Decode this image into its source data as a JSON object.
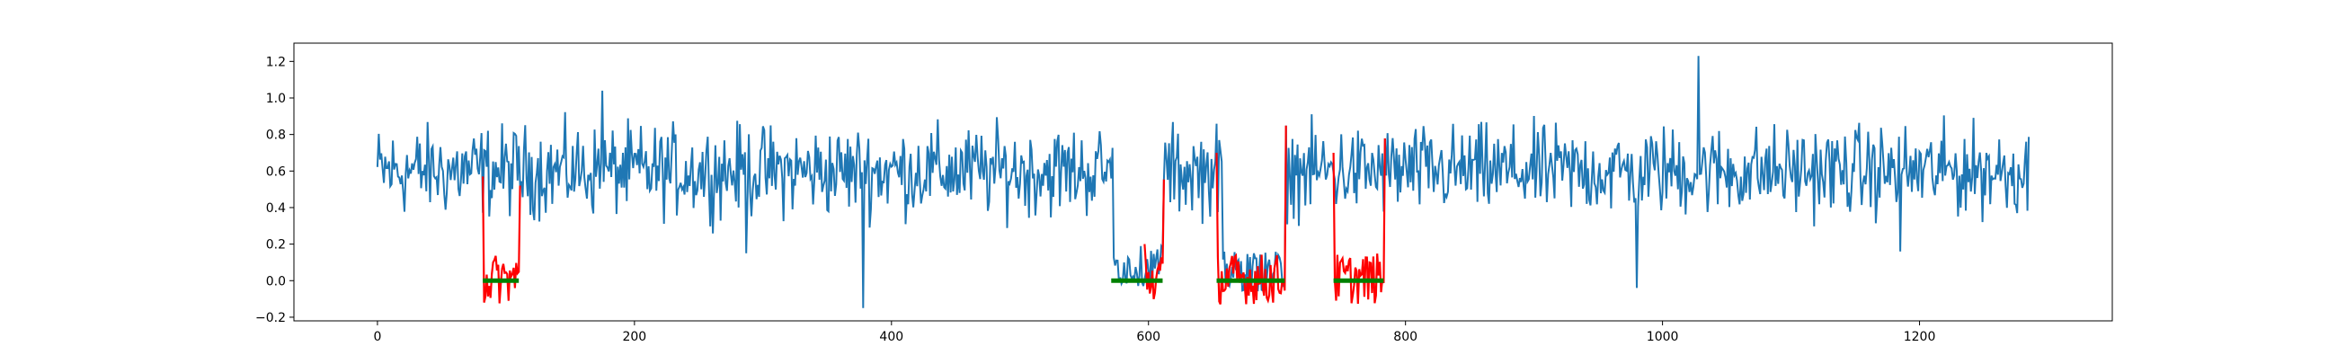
{
  "chart_data": {
    "type": "line",
    "title": "",
    "xlabel": "",
    "ylabel": "",
    "xlim": [
      -65,
      1350
    ],
    "ylim": [
      -0.22,
      1.3
    ],
    "xticks": [
      0,
      200,
      400,
      600,
      800,
      1000,
      1200
    ],
    "xtick_labels": [
      "0",
      "200",
      "400",
      "600",
      "800",
      "1000",
      "1200"
    ],
    "yticks": [
      -0.2,
      0.0,
      0.2,
      0.4,
      0.6,
      0.8,
      1.0,
      1.2
    ],
    "ytick_labels": [
      "−0.2",
      "0.0",
      "0.2",
      "0.4",
      "0.6",
      "0.8",
      "1.0",
      "1.2"
    ],
    "grid": false,
    "legend": "none",
    "signal": {
      "color": "#1f77b4",
      "x_range": [
        0,
        1285
      ],
      "baseline_mean": 0.6,
      "baseline_spread": 0.12,
      "notable_points": [
        {
          "x": 378,
          "y": -0.15
        },
        {
          "x": 287,
          "y": 0.15
        },
        {
          "x": 1028,
          "y": 1.23
        },
        {
          "x": 980,
          "y": -0.04
        },
        {
          "x": 175,
          "y": 1.04
        },
        {
          "x": 1185,
          "y": 0.16
        }
      ],
      "dips": [
        {
          "x_start": 573,
          "x_end": 611,
          "level": 0.08
        },
        {
          "x_start": 658,
          "x_end": 706,
          "level": 0.05
        }
      ]
    },
    "anomaly_series": {
      "color": "#ff0000",
      "segments": [
        {
          "x_start": 82,
          "x_end": 110,
          "start_value": 0.57
        },
        {
          "x_start": 597,
          "x_end": 611,
          "start_value": 0.2
        },
        {
          "x_start": 653,
          "x_end": 706,
          "start_value": 0.7
        },
        {
          "x_start": 744,
          "x_end": 783,
          "start_value": 0.7
        }
      ]
    },
    "detected_series": {
      "color": "#008000",
      "segments": [
        {
          "x_start": 82,
          "x_end": 110,
          "value": 0.0
        },
        {
          "x_start": 571,
          "x_end": 611,
          "value": 0.0
        },
        {
          "x_start": 653,
          "x_end": 706,
          "value": 0.0
        },
        {
          "x_start": 744,
          "x_end": 783,
          "value": 0.0
        }
      ]
    }
  }
}
